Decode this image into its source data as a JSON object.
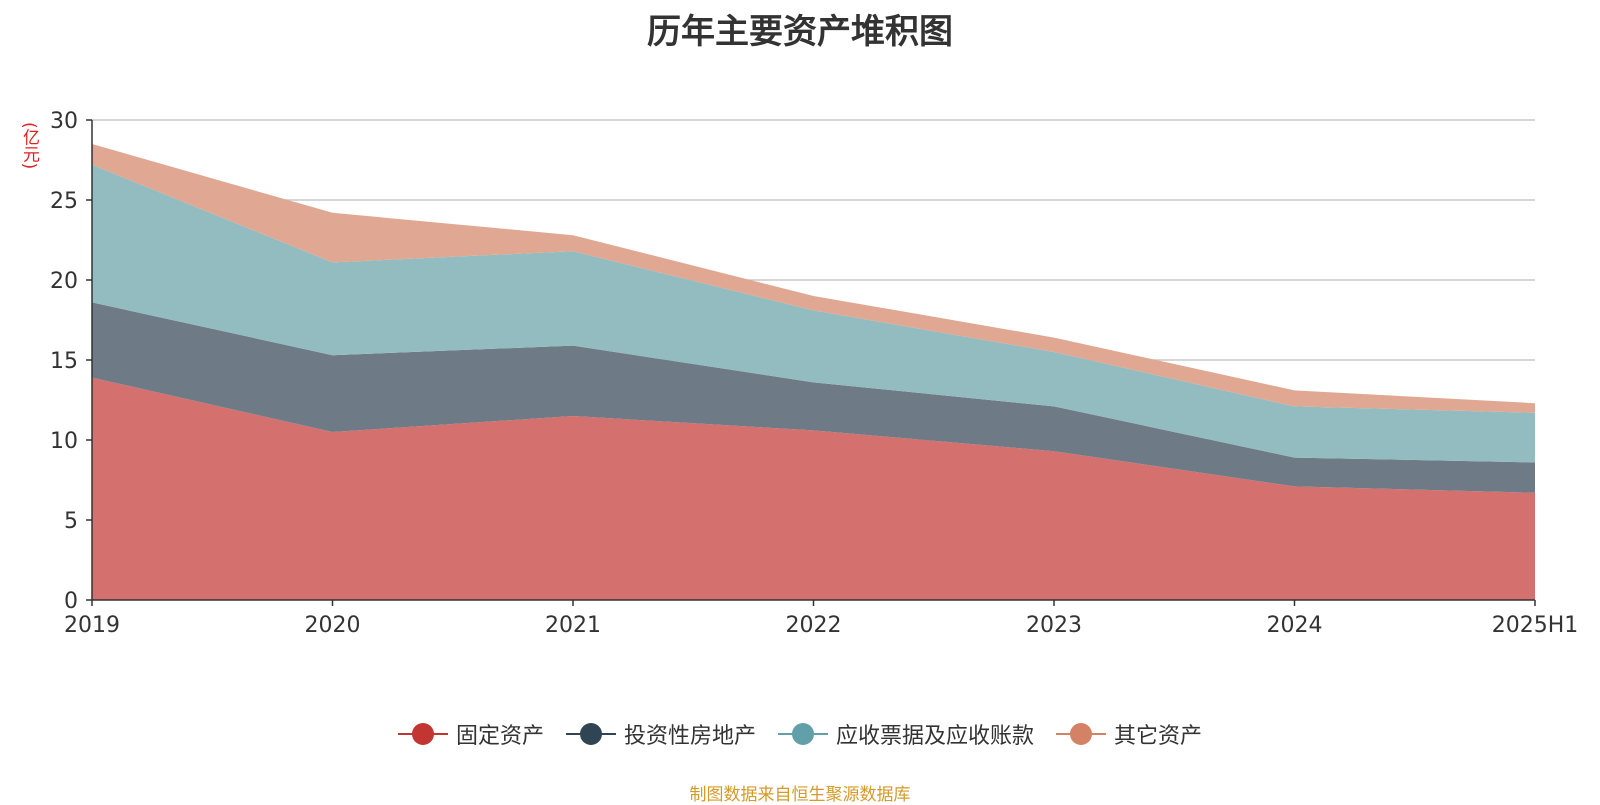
{
  "title": "历年主要资产堆积图",
  "unit_label": "(亿元)",
  "footer": "制图数据来自恒生聚源数据库",
  "chart_data": {
    "type": "area",
    "stacked": true,
    "categories": [
      "2019",
      "2020",
      "2021",
      "2022",
      "2023",
      "2024",
      "2025H1"
    ],
    "ylim": [
      0,
      30
    ],
    "yticks": [
      0,
      5,
      10,
      15,
      20,
      25,
      30
    ],
    "grid": true,
    "legend_position": "bottom",
    "series": [
      {
        "name": "固定资产",
        "color": "#c23531",
        "fill": "#d4706d",
        "values": [
          13.9,
          10.5,
          11.5,
          10.6,
          9.3,
          7.1,
          6.7
        ]
      },
      {
        "name": "投资性房地产",
        "color": "#2f4554",
        "fill": "#6e7b86",
        "values": [
          4.7,
          4.8,
          4.4,
          3.0,
          2.8,
          1.8,
          1.9
        ]
      },
      {
        "name": "应收票据及应收账款",
        "color": "#61a0a8",
        "fill": "#93bcc1",
        "values": [
          8.6,
          5.8,
          5.9,
          4.5,
          3.4,
          3.2,
          3.1
        ]
      },
      {
        "name": "其它资产",
        "color": "#d48265",
        "fill": "#e0a892",
        "values": [
          1.3,
          3.1,
          1.0,
          0.9,
          0.9,
          1.0,
          0.6
        ]
      }
    ]
  }
}
